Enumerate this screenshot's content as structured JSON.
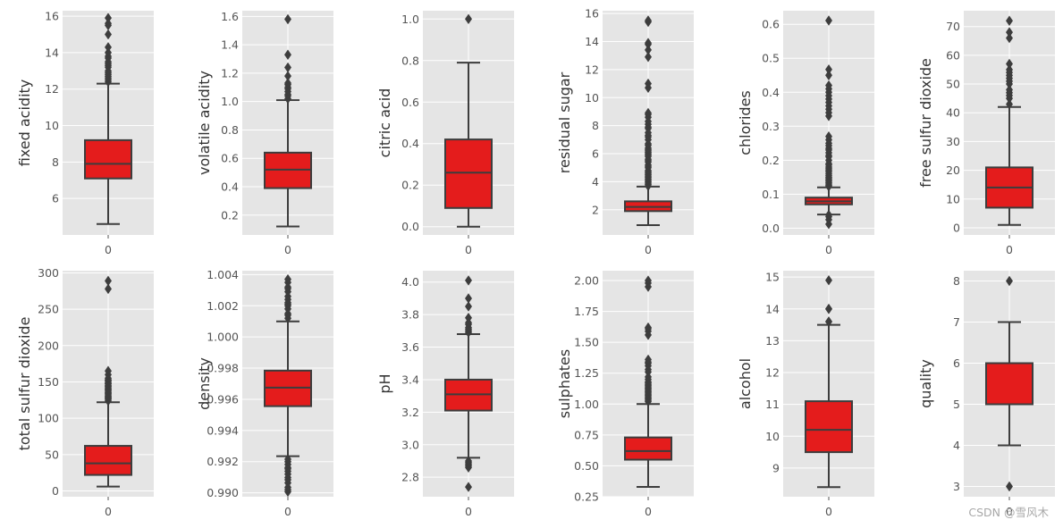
{
  "colors": {
    "panel_bg": "#e5e5e5",
    "grid": "#ffffff",
    "box_fill": "#e41c1c",
    "line": "#3d3d3d",
    "tick_text": "#555555",
    "label_text": "#333333"
  },
  "watermark": "CSDN @雪风木",
  "chart_data": [
    {
      "type": "box",
      "ylabel": "fixed acidity",
      "xtick": "0",
      "ylim": [
        4.0,
        16.3
      ],
      "yticks": [
        6,
        8,
        10,
        12,
        14,
        16
      ],
      "ytick_labels": [
        "6",
        "8",
        "10",
        "12",
        "14",
        "16"
      ],
      "whisker_low": 4.6,
      "q1": 7.1,
      "median": 7.9,
      "q3": 9.2,
      "whisker_high": 12.3,
      "outliers": [
        12.4,
        12.5,
        12.6,
        12.7,
        12.8,
        12.9,
        13.0,
        13.2,
        13.3,
        13.4,
        13.5,
        13.7,
        13.8,
        14.0,
        14.3,
        15.0,
        15.5,
        15.6,
        15.9
      ]
    },
    {
      "type": "box",
      "ylabel": "volatile acidity",
      "xtick": "0",
      "ylim": [
        0.06,
        1.64
      ],
      "yticks": [
        0.2,
        0.4,
        0.6,
        0.8,
        1.0,
        1.2,
        1.4,
        1.6
      ],
      "ytick_labels": [
        "0.2",
        "0.4",
        "0.6",
        "0.8",
        "1.0",
        "1.2",
        "1.4",
        "1.6"
      ],
      "whisker_low": 0.12,
      "q1": 0.39,
      "median": 0.52,
      "q3": 0.64,
      "whisker_high": 1.01,
      "outliers": [
        1.02,
        1.04,
        1.05,
        1.07,
        1.09,
        1.1,
        1.12,
        1.13,
        1.18,
        1.24,
        1.33,
        1.58
      ]
    },
    {
      "type": "box",
      "ylabel": "citric acid",
      "xtick": "0",
      "ylim": [
        -0.04,
        1.04
      ],
      "yticks": [
        0.0,
        0.2,
        0.4,
        0.6,
        0.8,
        1.0
      ],
      "ytick_labels": [
        "0.0",
        "0.2",
        "0.4",
        "0.6",
        "0.8",
        "1.0"
      ],
      "whisker_low": 0.0,
      "q1": 0.09,
      "median": 0.26,
      "q3": 0.42,
      "whisker_high": 0.79,
      "outliers": [
        1.0
      ]
    },
    {
      "type": "box",
      "ylabel": "residual sugar",
      "xtick": "0",
      "ylim": [
        0.2,
        16.2
      ],
      "yticks": [
        2,
        4,
        6,
        8,
        10,
        12,
        14,
        16
      ],
      "ytick_labels": [
        "2",
        "4",
        "6",
        "8",
        "10",
        "12",
        "14",
        "16"
      ],
      "whisker_low": 0.9,
      "q1": 1.9,
      "median": 2.2,
      "q3": 2.6,
      "whisker_high": 3.65,
      "outliers": [
        3.7,
        3.8,
        3.9,
        4.0,
        4.1,
        4.2,
        4.3,
        4.4,
        4.5,
        4.6,
        4.7,
        4.8,
        5.0,
        5.1,
        5.2,
        5.4,
        5.5,
        5.6,
        5.8,
        5.9,
        6.0,
        6.1,
        6.2,
        6.3,
        6.4,
        6.6,
        6.7,
        7.0,
        7.2,
        7.3,
        7.5,
        7.8,
        7.9,
        8.1,
        8.3,
        8.6,
        8.8,
        8.9,
        10.7,
        11.0,
        12.9,
        13.4,
        13.8,
        13.9,
        15.4,
        15.5
      ]
    },
    {
      "type": "box",
      "ylabel": "chlorides",
      "xtick": "0",
      "ylim": [
        -0.02,
        0.64
      ],
      "yticks": [
        0.0,
        0.1,
        0.2,
        0.3,
        0.4,
        0.5,
        0.6
      ],
      "ytick_labels": [
        "0.0",
        "0.1",
        "0.2",
        "0.3",
        "0.4",
        "0.5",
        "0.6"
      ],
      "whisker_low": 0.04,
      "q1": 0.07,
      "median": 0.079,
      "q3": 0.09,
      "whisker_high": 0.12,
      "outliers": [
        0.012,
        0.025,
        0.034,
        0.039,
        0.123,
        0.126,
        0.13,
        0.134,
        0.138,
        0.142,
        0.146,
        0.15,
        0.155,
        0.16,
        0.166,
        0.17,
        0.175,
        0.18,
        0.186,
        0.19,
        0.2,
        0.21,
        0.214,
        0.222,
        0.23,
        0.235,
        0.243,
        0.25,
        0.26,
        0.27,
        0.33,
        0.34,
        0.35,
        0.36,
        0.37,
        0.38,
        0.39,
        0.4,
        0.41,
        0.42,
        0.45,
        0.467,
        0.611
      ]
    },
    {
      "type": "box",
      "ylabel": "free sulfur dioxide",
      "xtick": "0",
      "ylim": [
        -2.5,
        75.5
      ],
      "yticks": [
        0,
        10,
        20,
        30,
        40,
        50,
        60,
        70
      ],
      "ytick_labels": [
        "0",
        "10",
        "20",
        "30",
        "40",
        "50",
        "60",
        "70"
      ],
      "whisker_low": 1,
      "q1": 7,
      "median": 14,
      "q3": 21,
      "whisker_high": 42,
      "outliers": [
        43,
        45,
        46,
        47,
        48,
        50,
        51,
        52,
        53,
        54,
        55,
        57,
        66,
        68,
        72
      ]
    },
    {
      "type": "box",
      "ylabel": "total sulfur dioxide",
      "xtick": "0",
      "ylim": [
        -8,
        303
      ],
      "yticks": [
        0,
        50,
        100,
        150,
        200,
        250,
        300
      ],
      "ytick_labels": [
        "0",
        "50",
        "100",
        "150",
        "200",
        "250",
        "300"
      ],
      "whisker_low": 6,
      "q1": 22,
      "median": 38,
      "q3": 62,
      "whisker_high": 122,
      "outliers": [
        124,
        126,
        127,
        128,
        129,
        130,
        131,
        133,
        134,
        135,
        136,
        138,
        139,
        140,
        141,
        143,
        144,
        145,
        147,
        148,
        149,
        151,
        152,
        153,
        155,
        160,
        165,
        278,
        289
      ]
    },
    {
      "type": "box",
      "ylabel": "density",
      "xtick": "0",
      "ylim": [
        0.98975,
        1.00425
      ],
      "yticks": [
        0.99,
        0.992,
        0.994,
        0.996,
        0.998,
        1.0,
        1.002,
        1.004
      ],
      "ytick_labels": [
        "0.990",
        "0.992",
        "0.994",
        "0.996",
        "0.998",
        "1.000",
        "1.002",
        "1.004"
      ],
      "whisker_low": 0.99235,
      "q1": 0.99556,
      "median": 0.99675,
      "q3": 0.99784,
      "whisker_high": 1.001,
      "outliers": [
        0.99007,
        0.9902,
        0.99035,
        0.99064,
        0.99084,
        0.99098,
        0.9912,
        0.99138,
        0.99154,
        0.99162,
        0.99182,
        0.992,
        0.99216,
        1.0012,
        1.0014,
        1.0015,
        1.0018,
        1.002,
        1.0021,
        1.0022,
        1.0024,
        1.0026,
        1.0029,
        1.0031,
        1.0032,
        1.0035,
        1.0037
      ]
    },
    {
      "type": "box",
      "ylabel": "pH",
      "xtick": "0",
      "ylim": [
        2.68,
        4.07
      ],
      "yticks": [
        2.8,
        3.0,
        3.2,
        3.4,
        3.6,
        3.8,
        4.0
      ],
      "ytick_labels": [
        "2.8",
        "3.0",
        "3.2",
        "3.4",
        "3.6",
        "3.8",
        "4.0"
      ],
      "whisker_low": 2.92,
      "q1": 3.21,
      "median": 3.31,
      "q3": 3.4,
      "whisker_high": 3.68,
      "outliers": [
        2.74,
        2.86,
        2.87,
        2.88,
        2.89,
        2.9,
        3.69,
        3.7,
        3.71,
        3.72,
        3.74,
        3.75,
        3.78,
        3.85,
        3.9,
        4.01
      ]
    },
    {
      "type": "box",
      "ylabel": "sulphates",
      "xtick": "0",
      "ylim": [
        0.25,
        2.08
      ],
      "yticks": [
        0.25,
        0.5,
        0.75,
        1.0,
        1.25,
        1.5,
        1.75,
        2.0
      ],
      "ytick_labels": [
        "0.25",
        "0.50",
        "0.75",
        "1.00",
        "1.25",
        "1.50",
        "1.75",
        "2.00"
      ],
      "whisker_low": 0.33,
      "q1": 0.55,
      "median": 0.62,
      "q3": 0.73,
      "whisker_high": 1.0,
      "outliers": [
        1.02,
        1.03,
        1.04,
        1.05,
        1.06,
        1.07,
        1.08,
        1.09,
        1.1,
        1.11,
        1.12,
        1.13,
        1.14,
        1.15,
        1.16,
        1.17,
        1.18,
        1.2,
        1.22,
        1.26,
        1.28,
        1.31,
        1.33,
        1.34,
        1.36,
        1.56,
        1.59,
        1.61,
        1.62,
        1.95,
        1.98,
        2.0
      ]
    },
    {
      "type": "box",
      "ylabel": "alcohol",
      "xtick": "0",
      "ylim": [
        8.1,
        15.2
      ],
      "yticks": [
        9,
        10,
        11,
        12,
        13,
        14,
        15
      ],
      "ytick_labels": [
        "9",
        "10",
        "11",
        "12",
        "13",
        "14",
        "15"
      ],
      "whisker_low": 8.4,
      "q1": 9.5,
      "median": 10.2,
      "q3": 11.1,
      "whisker_high": 13.5,
      "outliers": [
        13.6,
        13.6,
        14.0,
        14.0,
        14.9
      ]
    },
    {
      "type": "box",
      "ylabel": "quality",
      "xtick": "0",
      "ylim": [
        2.75,
        8.25
      ],
      "yticks": [
        3,
        4,
        5,
        6,
        7,
        8
      ],
      "ytick_labels": [
        "3",
        "4",
        "5",
        "6",
        "7",
        "8"
      ],
      "whisker_low": 4,
      "q1": 5,
      "median": 6,
      "q3": 6,
      "whisker_high": 7,
      "outliers": [
        3,
        8
      ]
    }
  ]
}
